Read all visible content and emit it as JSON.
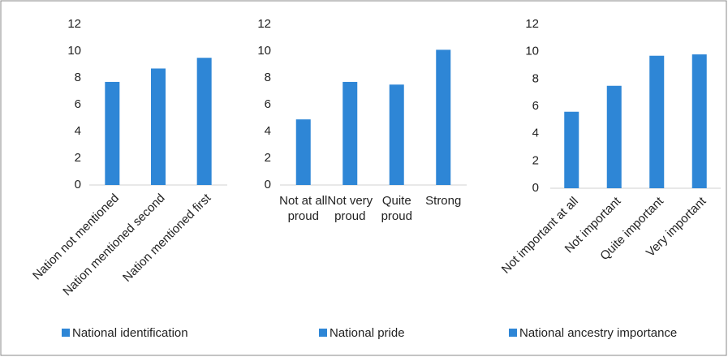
{
  "chart_data": [
    {
      "type": "bar",
      "categories": [
        "Nation not mentioned",
        "Nation mentioned second",
        "Nation mentioned first"
      ],
      "series": [
        {
          "name": "National identification",
          "color": "#2e86d6",
          "values": [
            7.7,
            8.7,
            9.5
          ]
        }
      ],
      "ylim": [
        0,
        12
      ],
      "yticks": [
        0,
        2,
        4,
        6,
        8,
        10,
        12
      ],
      "grid": false,
      "legend": "bottom"
    },
    {
      "type": "bar",
      "categories": [
        "Not at all proud",
        "Not very proud",
        "Quite proud",
        "Strong"
      ],
      "series": [
        {
          "name": "National pride",
          "color": "#2e86d6",
          "values": [
            4.9,
            7.7,
            7.5,
            10.1
          ]
        }
      ],
      "ylim": [
        0,
        12
      ],
      "yticks": [
        0,
        2,
        4,
        6,
        8,
        10,
        12
      ],
      "grid": false,
      "legend": "bottom"
    },
    {
      "type": "bar",
      "categories": [
        "Not important at all",
        "Not important",
        "Quite important",
        "Very important"
      ],
      "series": [
        {
          "name": "National ancestry importance",
          "color": "#2e86d6",
          "values": [
            5.6,
            7.5,
            9.7,
            9.8
          ]
        }
      ],
      "ylim": [
        0,
        12
      ],
      "yticks": [
        0,
        2,
        4,
        6,
        8,
        10,
        12
      ],
      "grid": false,
      "legend": "bottom"
    }
  ]
}
